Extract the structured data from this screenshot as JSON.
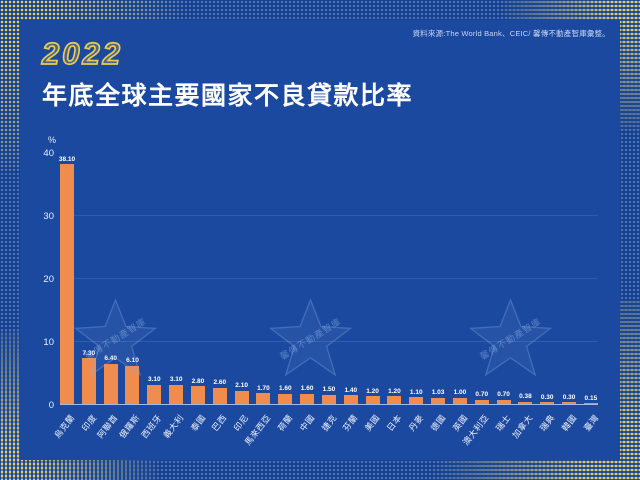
{
  "page": {
    "year": "2022",
    "title": "年底全球主要國家不良貸款比率",
    "source": "資料來源:The World Bank、CEIC/ 馨傳不動產智庫彙整。",
    "watermark_text": "馨傳不動產智庫"
  },
  "colors": {
    "outer_blue": "#14408f",
    "panel_blue": "#1b49a0",
    "bar_orange": "#f08c4e",
    "accent_yellow": "#ecc94f",
    "text_white": "#ffffff"
  },
  "chart_data": {
    "type": "bar",
    "title": "2022年底全球主要國家不良貸款比率",
    "xlabel": "",
    "ylabel": "%",
    "ylim": [
      0,
      40
    ],
    "yticks": [
      0,
      10,
      20,
      30,
      40
    ],
    "grid": "faint-horizontal",
    "legend": "none",
    "categories": [
      "烏克蘭",
      "印度",
      "阿聯酋",
      "俄羅斯",
      "西班牙",
      "義大利",
      "泰國",
      "巴西",
      "印尼",
      "馬來西亞",
      "荷蘭",
      "中國",
      "捷克",
      "芬蘭",
      "美國",
      "日本",
      "丹麥",
      "德國",
      "英國",
      "澳大利亞",
      "瑞士",
      "加拿大",
      "瑞典",
      "韓國",
      "臺灣"
    ],
    "values": [
      38.1,
      7.3,
      6.4,
      6.1,
      3.1,
      3.1,
      2.8,
      2.6,
      2.1,
      1.7,
      1.6,
      1.6,
      1.5,
      1.4,
      1.2,
      1.2,
      1.1,
      1.03,
      1.0,
      0.7,
      0.7,
      0.38,
      0.3,
      0.3,
      0.15
    ]
  }
}
